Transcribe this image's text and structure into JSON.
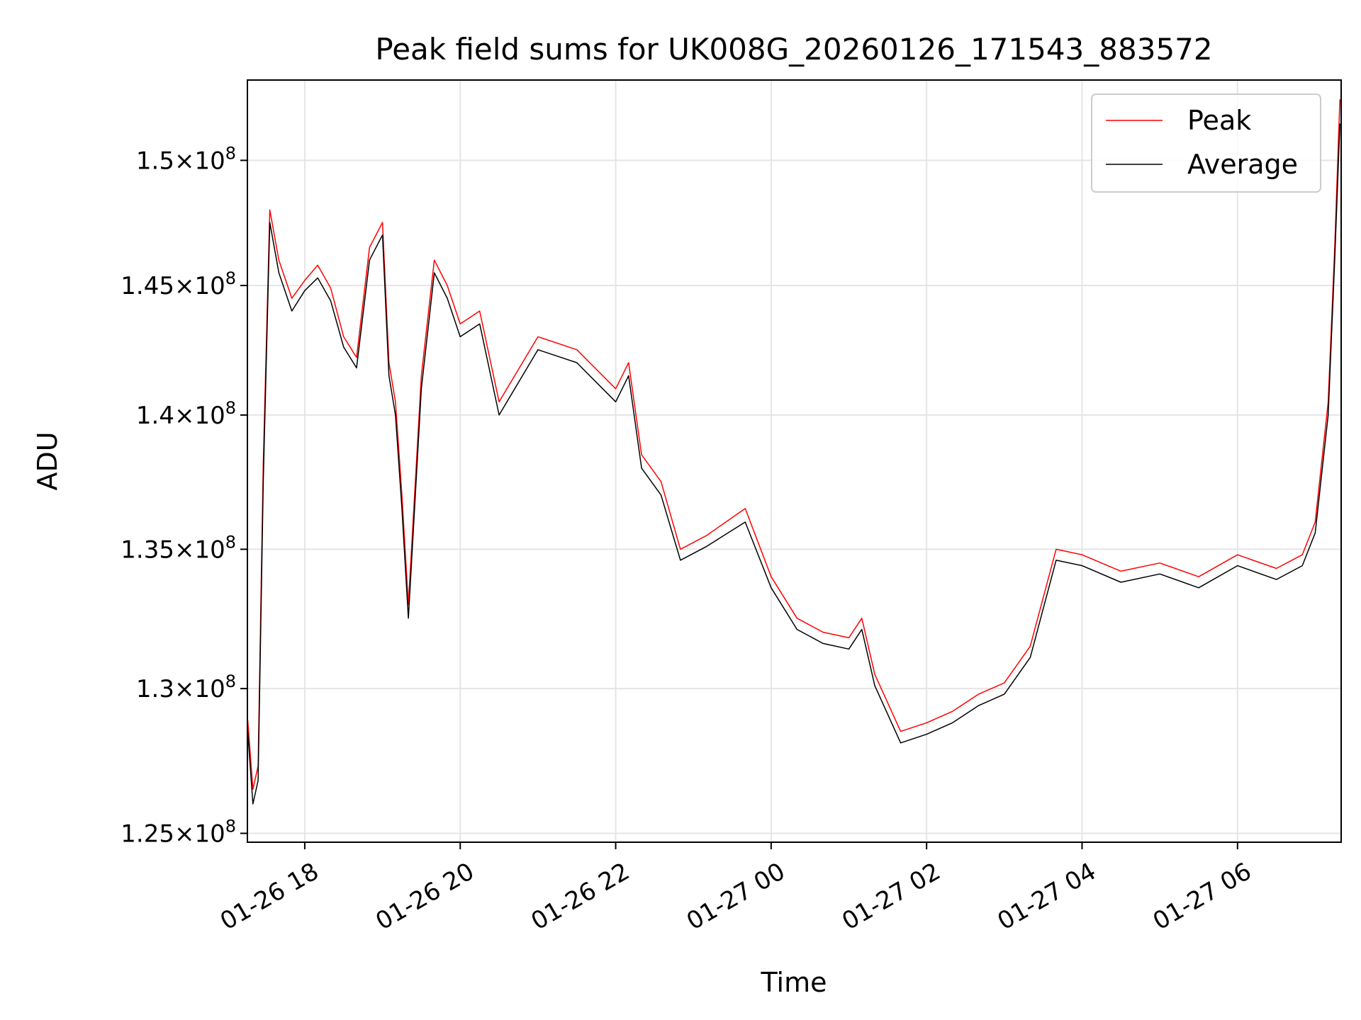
{
  "chart_data": {
    "type": "line",
    "title": "Peak field sums for UK008G_20260126_171543_883572",
    "xlabel": "Time",
    "ylabel": "ADU",
    "x_unit": "datetime",
    "xlim": [
      "2026-01-26T17:15:43",
      "2026-01-27T07:20:00"
    ],
    "ylim": [
      124700000,
      153300000
    ],
    "y_scale": "log",
    "grid": true,
    "legend_position": "upper right",
    "x_ticks": [
      {
        "value": "2026-01-26T18:00",
        "label": "01-26 18"
      },
      {
        "value": "2026-01-26T20:00",
        "label": "01-26 20"
      },
      {
        "value": "2026-01-26T22:00",
        "label": "01-26 22"
      },
      {
        "value": "2026-01-27T00:00",
        "label": "01-27 00"
      },
      {
        "value": "2026-01-27T02:00",
        "label": "01-27 02"
      },
      {
        "value": "2026-01-27T04:00",
        "label": "01-27 04"
      },
      {
        "value": "2026-01-27T06:00",
        "label": "01-27 06"
      }
    ],
    "y_ticks": [
      {
        "value": 125000000,
        "mantissa": "1.25"
      },
      {
        "value": 130000000,
        "mantissa": "1.3"
      },
      {
        "value": 135000000,
        "mantissa": "1.35"
      },
      {
        "value": 140000000,
        "mantissa": "1.4"
      },
      {
        "value": 145000000,
        "mantissa": "1.45"
      },
      {
        "value": 150000000,
        "mantissa": "1.5"
      }
    ],
    "y_tick_base": "10",
    "y_tick_exponent": "8",
    "series": [
      {
        "name": "Peak",
        "color": "#ff0000",
        "x": [
          "2026-01-26T17:16",
          "2026-01-26T17:20",
          "2026-01-26T17:24",
          "2026-01-26T17:28",
          "2026-01-26T17:33",
          "2026-01-26T17:40",
          "2026-01-26T17:50",
          "2026-01-26T18:00",
          "2026-01-26T18:10",
          "2026-01-26T18:20",
          "2026-01-26T18:30",
          "2026-01-26T18:40",
          "2026-01-26T18:50",
          "2026-01-26T19:00",
          "2026-01-26T19:05",
          "2026-01-26T19:10",
          "2026-01-26T19:15",
          "2026-01-26T19:20",
          "2026-01-26T19:30",
          "2026-01-26T19:40",
          "2026-01-26T19:50",
          "2026-01-26T20:00",
          "2026-01-26T20:15",
          "2026-01-26T20:30",
          "2026-01-26T21:00",
          "2026-01-26T21:30",
          "2026-01-26T22:00",
          "2026-01-26T22:10",
          "2026-01-26T22:20",
          "2026-01-26T22:35",
          "2026-01-26T22:50",
          "2026-01-26T23:10",
          "2026-01-26T23:40",
          "2026-01-27T00:00",
          "2026-01-27T00:20",
          "2026-01-27T00:40",
          "2026-01-27T01:00",
          "2026-01-27T01:10",
          "2026-01-27T01:20",
          "2026-01-27T01:40",
          "2026-01-27T02:00",
          "2026-01-27T02:20",
          "2026-01-27T02:40",
          "2026-01-27T03:00",
          "2026-01-27T03:20",
          "2026-01-27T03:40",
          "2026-01-27T04:00",
          "2026-01-27T04:30",
          "2026-01-27T05:00",
          "2026-01-27T05:30",
          "2026-01-27T06:00",
          "2026-01-27T06:30",
          "2026-01-27T06:50",
          "2026-01-27T07:00",
          "2026-01-27T07:10",
          "2026-01-27T07:15",
          "2026-01-27T07:19"
        ],
        "values": [
          128900000,
          126500000,
          127300000,
          138200000,
          148000000,
          146000000,
          144500000,
          145200000,
          145800000,
          144900000,
          143000000,
          142200000,
          146500000,
          147500000,
          142000000,
          140500000,
          137000000,
          133000000,
          141500000,
          146000000,
          145000000,
          143500000,
          144000000,
          140500000,
          143000000,
          142500000,
          141000000,
          142000000,
          138500000,
          137500000,
          135000000,
          135500000,
          136500000,
          134000000,
          132500000,
          132000000,
          131800000,
          132500000,
          130500000,
          128500000,
          128800000,
          129200000,
          129800000,
          130200000,
          131500000,
          135000000,
          134800000,
          134200000,
          134500000,
          134000000,
          134800000,
          134300000,
          134800000,
          136000000,
          140500000,
          146500000,
          152500000
        ]
      },
      {
        "name": "Average",
        "color": "#000000",
        "x": [
          "2026-01-26T17:16",
          "2026-01-26T17:20",
          "2026-01-26T17:24",
          "2026-01-26T17:28",
          "2026-01-26T17:33",
          "2026-01-26T17:40",
          "2026-01-26T17:50",
          "2026-01-26T18:00",
          "2026-01-26T18:10",
          "2026-01-26T18:20",
          "2026-01-26T18:30",
          "2026-01-26T18:40",
          "2026-01-26T18:50",
          "2026-01-26T19:00",
          "2026-01-26T19:05",
          "2026-01-26T19:10",
          "2026-01-26T19:15",
          "2026-01-26T19:20",
          "2026-01-26T19:30",
          "2026-01-26T19:40",
          "2026-01-26T19:50",
          "2026-01-26T20:00",
          "2026-01-26T20:15",
          "2026-01-26T20:30",
          "2026-01-26T21:00",
          "2026-01-26T21:30",
          "2026-01-26T22:00",
          "2026-01-26T22:10",
          "2026-01-26T22:20",
          "2026-01-26T22:35",
          "2026-01-26T22:50",
          "2026-01-26T23:10",
          "2026-01-26T23:40",
          "2026-01-27T00:00",
          "2026-01-27T00:20",
          "2026-01-27T00:40",
          "2026-01-27T01:00",
          "2026-01-27T01:10",
          "2026-01-27T01:20",
          "2026-01-27T01:40",
          "2026-01-27T02:00",
          "2026-01-27T02:20",
          "2026-01-27T02:40",
          "2026-01-27T03:00",
          "2026-01-27T03:20",
          "2026-01-27T03:40",
          "2026-01-27T04:00",
          "2026-01-27T04:30",
          "2026-01-27T05:00",
          "2026-01-27T05:30",
          "2026-01-27T06:00",
          "2026-01-27T06:30",
          "2026-01-27T06:50",
          "2026-01-27T07:00",
          "2026-01-27T07:10",
          "2026-01-27T07:15",
          "2026-01-27T07:19"
        ],
        "values": [
          128500000,
          126000000,
          126800000,
          137500000,
          147500000,
          145500000,
          144000000,
          144800000,
          145300000,
          144400000,
          142600000,
          141800000,
          146000000,
          147000000,
          141500000,
          140000000,
          136500000,
          132500000,
          141000000,
          145500000,
          144500000,
          143000000,
          143500000,
          140000000,
          142500000,
          142000000,
          140500000,
          141500000,
          138000000,
          137000000,
          134600000,
          135100000,
          136000000,
          133600000,
          132100000,
          131600000,
          131400000,
          132100000,
          130100000,
          128100000,
          128400000,
          128800000,
          129400000,
          129800000,
          131100000,
          134600000,
          134400000,
          133800000,
          134100000,
          133600000,
          134400000,
          133900000,
          134400000,
          135600000,
          140000000,
          146000000,
          151500000
        ]
      }
    ]
  }
}
